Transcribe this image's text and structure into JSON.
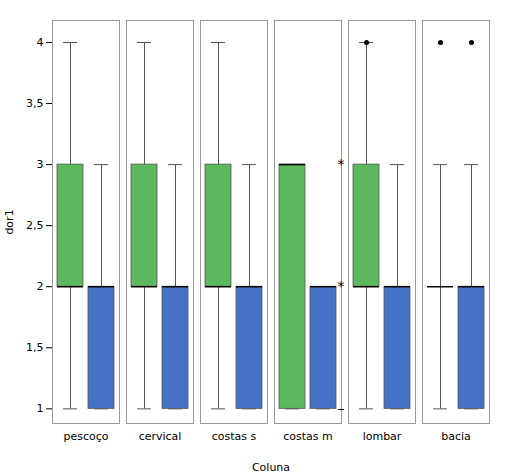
{
  "chart_data": {
    "type": "box",
    "xlabel": "Coluna",
    "ylabel": "dor1",
    "categories": [
      "pescoço",
      "cervical",
      "costas s",
      "costas m",
      "lombar",
      "bacia"
    ],
    "ylim": [
      0.88,
      4.18
    ],
    "yticks": [
      1,
      {
        "value": 1.5,
        "label": "1,5"
      },
      2,
      {
        "value": 2.5,
        "label": "2,5"
      },
      3,
      {
        "value": 3.5,
        "label": "3,5"
      },
      4
    ],
    "grid": false,
    "series": [
      {
        "color": "#5cb85c",
        "boxes": [
          {
            "q1": 2.0,
            "med": 2.0,
            "q3": 3.0,
            "whislo": 1.0,
            "whishi": 4.0,
            "fliers": []
          },
          {
            "q1": 2.0,
            "med": 2.0,
            "q3": 3.0,
            "whislo": 1.0,
            "whishi": 4.0,
            "fliers": []
          },
          {
            "q1": 2.0,
            "med": 2.0,
            "q3": 3.0,
            "whislo": 1.0,
            "whishi": 4.0,
            "fliers": []
          },
          {
            "q1": 1.0,
            "med": 3.0,
            "q3": 3.0,
            "whislo": 1.0,
            "whishi": 3.0,
            "fliers": []
          },
          {
            "q1": 2.0,
            "med": 2.0,
            "q3": 3.0,
            "whislo": 1.0,
            "whishi": 4.0,
            "fliers": [
              4.0
            ]
          },
          {
            "q1": 2.0,
            "med": 2.0,
            "q3": 2.0,
            "whislo": 1.0,
            "whishi": 3.0,
            "fliers": [
              4.0
            ]
          }
        ]
      },
      {
        "color": "#4472c4",
        "boxes": [
          {
            "q1": 1.0,
            "med": 2.0,
            "q3": 2.0,
            "whislo": 1.0,
            "whishi": 3.0,
            "fliers": []
          },
          {
            "q1": 1.0,
            "med": 2.0,
            "q3": 2.0,
            "whislo": 1.0,
            "whishi": 3.0,
            "fliers": []
          },
          {
            "q1": 1.0,
            "med": 2.0,
            "q3": 2.0,
            "whislo": 1.0,
            "whishi": 3.0,
            "fliers": []
          },
          {
            "q1": 1.0,
            "med": 2.0,
            "q3": 2.0,
            "whislo": 1.0,
            "whishi": 2.0,
            "fliers": []
          },
          {
            "q1": 1.0,
            "med": 2.0,
            "q3": 2.0,
            "whislo": 1.0,
            "whishi": 3.0,
            "fliers": []
          },
          {
            "q1": 1.0,
            "med": 2.0,
            "q3": 2.0,
            "whislo": 1.0,
            "whishi": 3.0,
            "fliers": [
              4.0
            ]
          }
        ]
      }
    ],
    "annotations": [
      {
        "text": "*",
        "category": "costas m",
        "y": 3.0
      },
      {
        "text": "*",
        "category": "costas m",
        "y": 2.0
      },
      {
        "text": "–",
        "category": "costas m",
        "y": 1.0
      }
    ]
  }
}
